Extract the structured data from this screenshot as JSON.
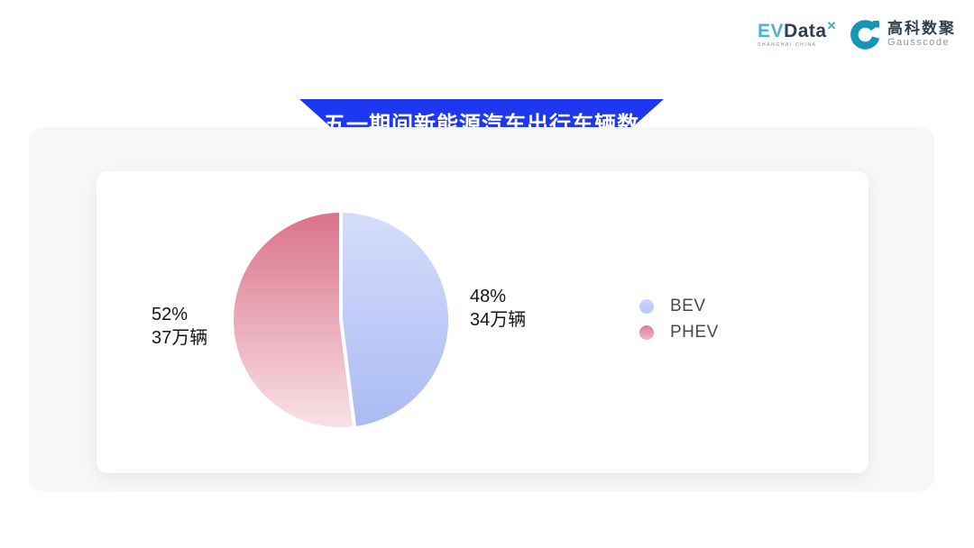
{
  "header": {
    "evdata_logo": {
      "ev": "EV",
      "data": "Data",
      "sup": "✕",
      "subtext": "SHANGHAI CHINA",
      "teal": "#4fb0d2",
      "navy": "#2e3d55"
    },
    "gausscode_logo": {
      "cn": "高科数聚",
      "en": "Gausscode",
      "teal": "#1796b4"
    }
  },
  "banner": {
    "title": "五一期间新能源汽车出行车辆数",
    "color": "#1d38f0"
  },
  "chart_data": {
    "type": "pie",
    "title": "五一期间新能源汽车出行车辆数",
    "unit": "万辆",
    "start_angle": "top",
    "direction": "clockwise",
    "legend_position": "right",
    "slices": [
      {
        "name": "BEV",
        "percent": 48,
        "value": 34,
        "percent_label": "48%",
        "value_label": "34万辆",
        "color_top": "#d6ddfb",
        "color_bottom": "#aabbf4"
      },
      {
        "name": "PHEV",
        "percent": 52,
        "value": 37,
        "percent_label": "52%",
        "value_label": "37万辆",
        "color_top": "#da7189",
        "color_bottom": "#f9e2e7"
      }
    ]
  }
}
